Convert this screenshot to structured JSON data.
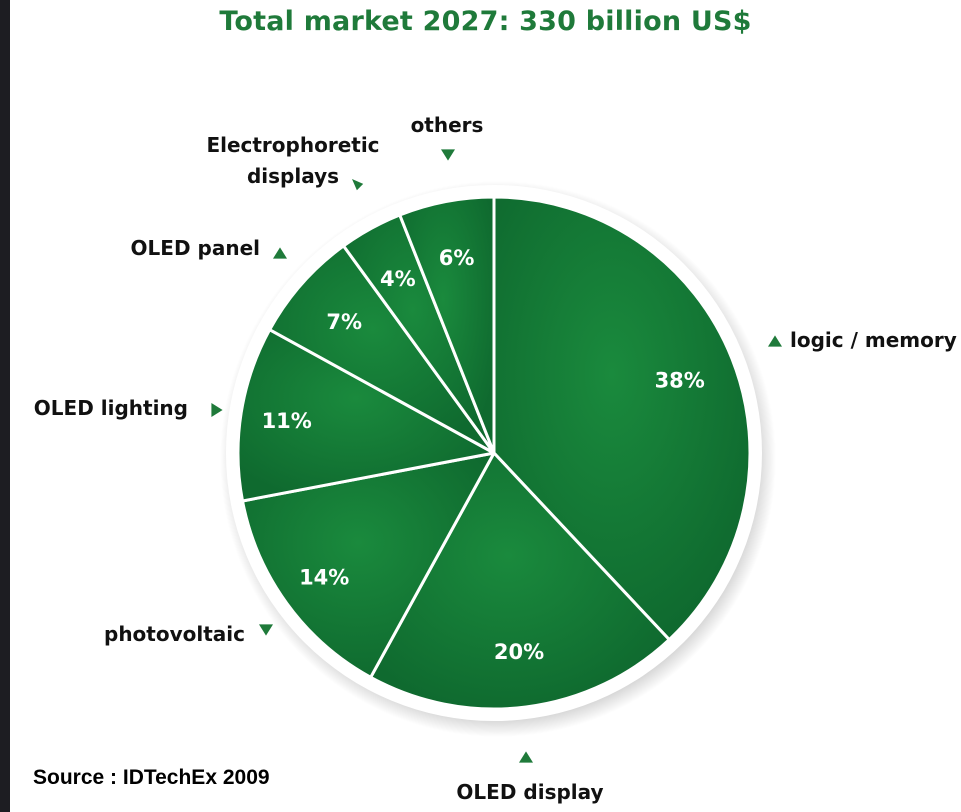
{
  "chart_data": {
    "type": "pie",
    "title": "Total market 2027: 330 billion US$",
    "slices": [
      {
        "label": "logic / memory",
        "value": 38,
        "value_label": "38%"
      },
      {
        "label": "OLED display",
        "value": 20,
        "value_label": "20%"
      },
      {
        "label": "photovoltaic",
        "value": 14,
        "value_label": "14%"
      },
      {
        "label": "OLED lighting",
        "value": 11,
        "value_label": "11%"
      },
      {
        "label": "OLED panel",
        "value": 7,
        "value_label": "7%"
      },
      {
        "label": "Electrophoretic displays",
        "value": 4,
        "value_label": "4%"
      },
      {
        "label": "others",
        "value": 6,
        "value_label": "6%"
      }
    ],
    "colors": {
      "slice_fill": "#0f6a2f",
      "slice_border": "#ffffff",
      "title": "#1f7a3a",
      "marker": "#1f7a3a"
    }
  },
  "footer": {
    "source": "Source : IDTechEx  2009"
  }
}
